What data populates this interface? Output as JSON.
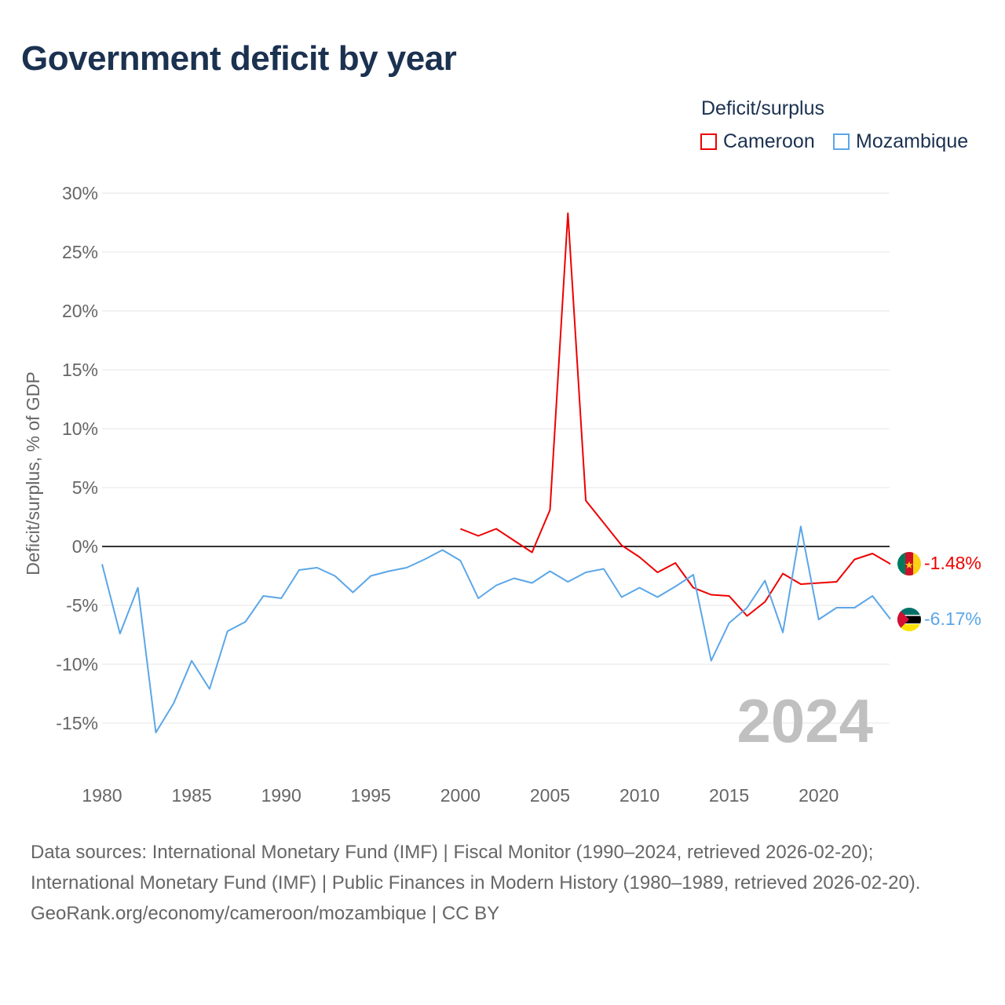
{
  "title": "Government deficit by year",
  "legend": {
    "title": "Deficit/surplus",
    "items": [
      {
        "label": "Cameroon",
        "color": "#ee0000"
      },
      {
        "label": "Mozambique",
        "color": "#5ba6e8"
      }
    ]
  },
  "year_watermark": "2024",
  "end_labels": {
    "cameroon": "-1.48%",
    "mozambique": "-6.17%"
  },
  "footer": {
    "sources": "Data sources: International Monetary Fund (IMF) | Fiscal Monitor (1990–2024, retrieved 2026-02-20); International Monetary Fund (IMF) | Public Finances in Modern History (1980–1989, retrieved 2026-02-20).",
    "credit": "GeoRank.org/economy/cameroon/mozambique | CC BY"
  },
  "chart_data": {
    "type": "line",
    "title": "Government deficit by year",
    "xlabel": "",
    "ylabel": "Deficit/surplus, % of GDP",
    "xlim": [
      1980,
      2024
    ],
    "ylim": [
      -18,
      30
    ],
    "xticks": [
      1980,
      1985,
      1990,
      1995,
      2000,
      2005,
      2010,
      2015,
      2020
    ],
    "yticks": [
      30,
      25,
      20,
      15,
      10,
      5,
      0,
      -5,
      -10,
      -15
    ],
    "ytick_labels": [
      "30%",
      "25%",
      "20%",
      "15%",
      "10%",
      "5%",
      "0%",
      "-5%",
      "-10%",
      "-15%"
    ],
    "grid": true,
    "legend_position": "top-right",
    "series": [
      {
        "name": "Cameroon",
        "color": "#ee0000",
        "x": [
          2000,
          2001,
          2002,
          2003,
          2004,
          2005,
          2006,
          2007,
          2008,
          2009,
          2010,
          2011,
          2012,
          2013,
          2014,
          2015,
          2016,
          2017,
          2018,
          2019,
          2020,
          2021,
          2022,
          2023,
          2024
        ],
        "values": [
          1.5,
          0.9,
          1.5,
          0.5,
          -0.5,
          3.1,
          28.3,
          3.9,
          2.0,
          0.1,
          -0.9,
          -2.2,
          -1.4,
          -3.5,
          -4.1,
          -4.2,
          -5.9,
          -4.7,
          -2.3,
          -3.2,
          -3.1,
          -3.0,
          -1.1,
          -0.6,
          -1.48
        ]
      },
      {
        "name": "Mozambique",
        "color": "#5ba6e8",
        "x": [
          1980,
          1981,
          1982,
          1983,
          1984,
          1985,
          1986,
          1987,
          1988,
          1989,
          1990,
          1991,
          1992,
          1993,
          1994,
          1995,
          1996,
          1997,
          1998,
          1999,
          2000,
          2001,
          2002,
          2003,
          2004,
          2005,
          2006,
          2007,
          2008,
          2009,
          2010,
          2011,
          2012,
          2013,
          2014,
          2015,
          2016,
          2017,
          2018,
          2019,
          2020,
          2021,
          2022,
          2023,
          2024
        ],
        "values": [
          -1.5,
          -7.4,
          -3.5,
          -15.8,
          -13.3,
          -9.7,
          -12.1,
          -7.2,
          -6.4,
          -4.2,
          -4.4,
          -2.0,
          -1.8,
          -2.5,
          -3.9,
          -2.5,
          -2.1,
          -1.8,
          -1.1,
          -0.3,
          -1.2,
          -4.4,
          -3.3,
          -2.7,
          -3.1,
          -2.1,
          -3.0,
          -2.2,
          -1.9,
          -4.3,
          -3.5,
          -4.3,
          -3.4,
          -2.4,
          -9.7,
          -6.5,
          -5.2,
          -2.9,
          -7.3,
          1.7,
          -6.2,
          -5.2,
          -5.2,
          -4.2,
          -6.17
        ]
      }
    ]
  }
}
